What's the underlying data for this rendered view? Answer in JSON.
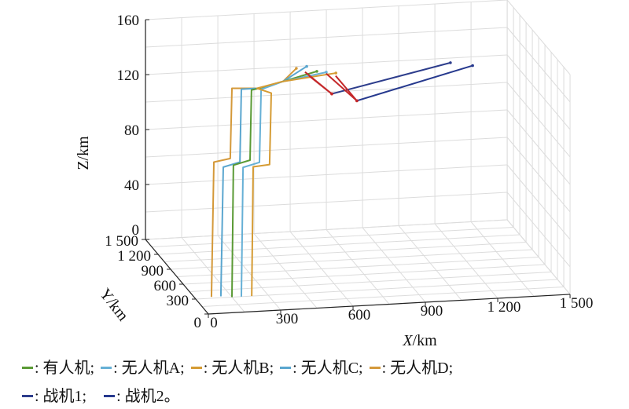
{
  "chart_data": {
    "type": "line3d",
    "axes": {
      "x": {
        "label_var": "X",
        "label_unit": "/km",
        "range": [
          0,
          1500
        ],
        "ticks": [
          0,
          300,
          600,
          900,
          1200,
          1500
        ],
        "tick_labels": [
          "0",
          "300",
          "600",
          "900",
          "1 200",
          "1 500"
        ]
      },
      "y": {
        "label": "Y/km",
        "range": [
          0,
          1500
        ],
        "ticks": [
          0,
          300,
          600,
          900,
          1200,
          1500
        ],
        "tick_labels": [
          "0",
          "300",
          "600",
          "900",
          "1 200",
          "1 500"
        ]
      },
      "z": {
        "label": "Z/km",
        "range": [
          0,
          160
        ],
        "ticks": [
          0,
          40,
          80,
          120,
          160
        ],
        "tick_labels": [
          "0",
          "40",
          "80",
          "120",
          "160"
        ]
      }
    },
    "grid": true,
    "legend_placement": "bottom",
    "series": [
      {
        "name": "无人机D",
        "color": "#d4993a",
        "points": [
          [
            65,
            300,
            1
          ],
          [
            75,
            300,
            99
          ],
          [
            143,
            300,
            101
          ],
          [
            150,
            300,
            152
          ],
          [
            264,
            300,
            151
          ],
          [
            362,
            300,
            155
          ],
          [
            417,
            300,
            164
          ]
        ]
      },
      {
        "name": "无人机C",
        "color": "#5aa6cf",
        "points": [
          [
            104,
            300,
            1
          ],
          [
            114,
            300,
            95
          ],
          [
            183,
            300,
            98
          ],
          [
            189,
            300,
            151
          ],
          [
            264,
            300,
            151
          ],
          [
            362,
            300,
            155
          ],
          [
            460,
            300,
            165
          ]
        ]
      },
      {
        "name": "有人机",
        "color": "#5a9a35",
        "points": [
          [
            150,
            300,
            0
          ],
          [
            156,
            300,
            96
          ],
          [
            225,
            300,
            99
          ],
          [
            231,
            300,
            150
          ],
          [
            264,
            300,
            151
          ],
          [
            362,
            300,
            155
          ],
          [
            502,
            300,
            161
          ]
        ]
      },
      {
        "name": "无人机A",
        "color": "#66b0d6",
        "points": [
          [
            189,
            300,
            0
          ],
          [
            196,
            300,
            94
          ],
          [
            264,
            300,
            97
          ],
          [
            271,
            300,
            150
          ],
          [
            362,
            300,
            155
          ],
          [
            541,
            300,
            160
          ]
        ]
      },
      {
        "name": "无人机B",
        "color": "#d59b33",
        "points": [
          [
            232,
            300,
            0
          ],
          [
            238,
            300,
            94
          ],
          [
            306,
            300,
            95
          ],
          [
            313,
            300,
            147
          ],
          [
            254,
            300,
            151
          ],
          [
            362,
            300,
            155
          ],
          [
            581,
            300,
            159
          ]
        ]
      },
      {
        "name": "战机1",
        "color": "#2d3d8c",
        "points": [
          [
            564,
            300,
            144
          ],
          [
            1056,
            300,
            162
          ]
        ]
      },
      {
        "name": "战机2",
        "color": "#26398e",
        "points": [
          [
            668,
            300,
            138
          ],
          [
            1148,
            300,
            159
          ]
        ]
      }
    ],
    "intercept_segments": {
      "color": "#c4282a",
      "segments": [
        [
          [
            453,
            300,
            161
          ],
          [
            564,
            300,
            144
          ]
        ],
        [
          [
            470,
            300,
            158
          ],
          [
            564,
            300,
            144
          ]
        ],
        [
          [
            541,
            300,
            159
          ],
          [
            668,
            300,
            138
          ]
        ],
        [
          [
            580,
            300,
            157
          ],
          [
            668,
            300,
            138
          ]
        ]
      ]
    }
  },
  "legend": {
    "row1": [
      {
        "label": ": 有人机;",
        "color": "#5a9a35"
      },
      {
        "label": ": 无人机A;",
        "color": "#66b0d6"
      },
      {
        "label": ": 无人机B;",
        "color": "#d59b33"
      },
      {
        "label": ": 无人机C;",
        "color": "#5aa6cf"
      },
      {
        "label": ": 无人机D;",
        "color": "#d4993a"
      }
    ],
    "row2": [
      {
        "label": ": 战机1;",
        "color": "#2d3d8c"
      },
      {
        "label": ": 战机2。",
        "color": "#26398e"
      }
    ]
  }
}
